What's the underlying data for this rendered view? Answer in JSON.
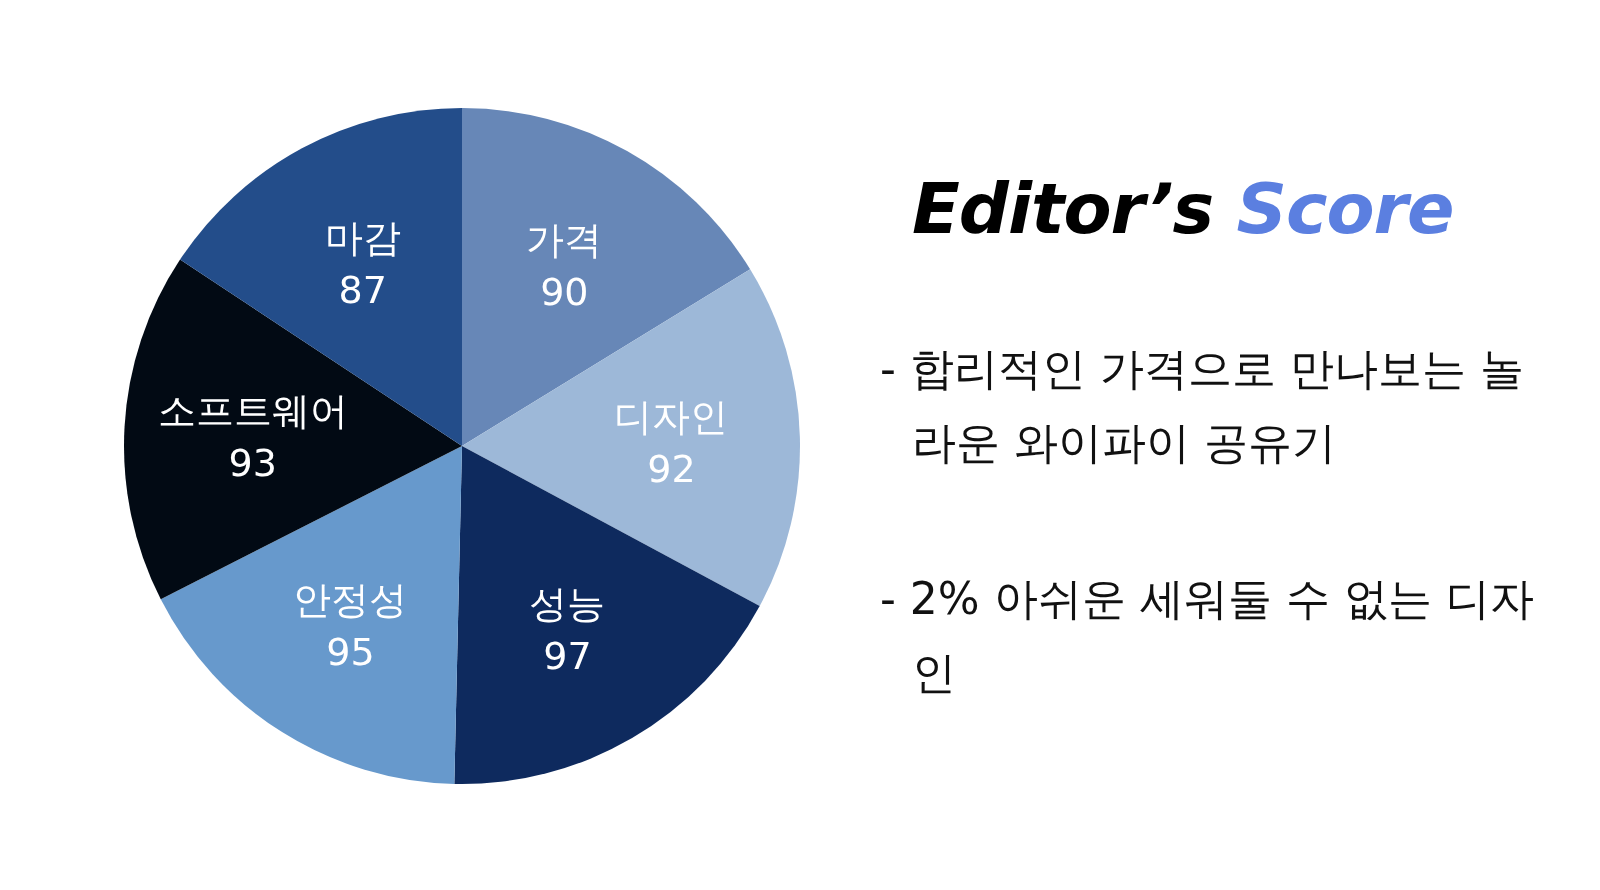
{
  "chart_data": {
    "type": "pie",
    "title": "Editor’s Score",
    "categories": [
      "가격",
      "디자인",
      "성능",
      "안정성",
      "소프트웨어",
      "마감"
    ],
    "values": [
      90,
      92,
      97,
      95,
      93,
      87
    ],
    "colors": [
      "#6787b7",
      "#9db8d8",
      "#0e2a5e",
      "#6799cc",
      "#020a14",
      "#234d8a"
    ],
    "data_labels": true,
    "annotations": [
      "- 합리적인 가격으로 만나보는 놀라운 와이파이 공유기",
      "- 2% 아쉬운 세워둘 수 없는 디자인"
    ]
  }
}
